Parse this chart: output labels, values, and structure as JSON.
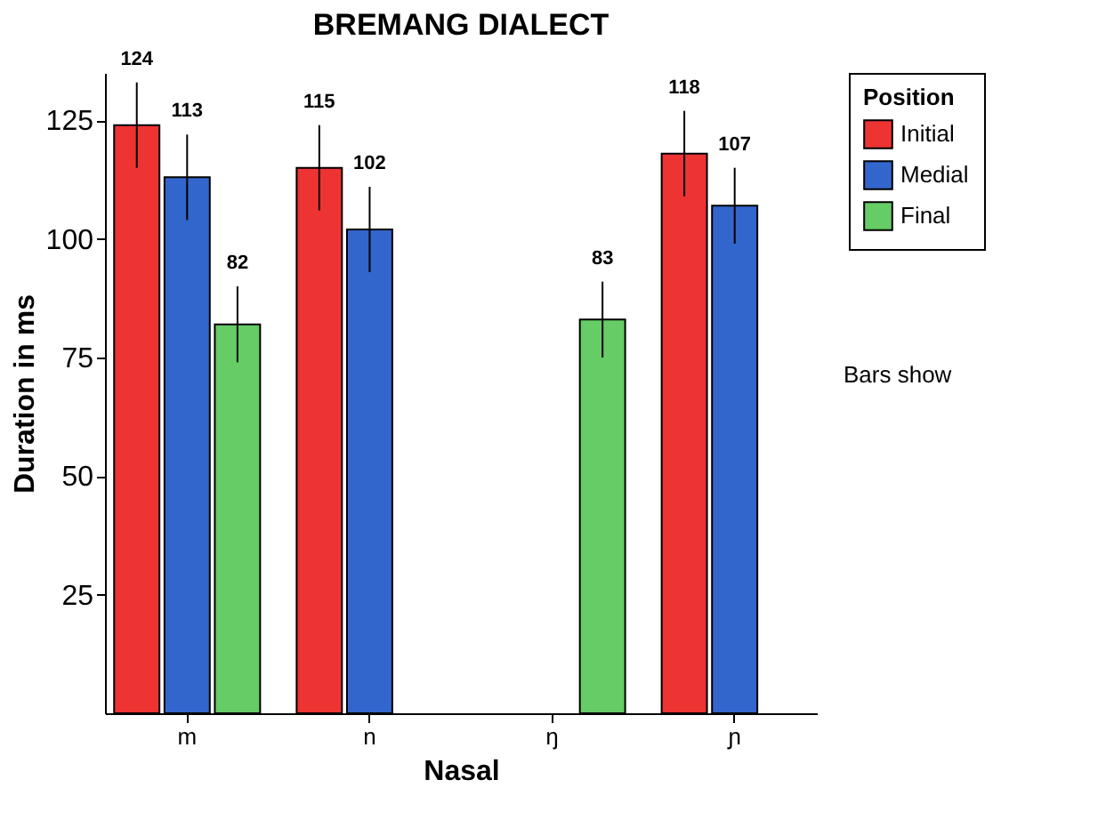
{
  "chart_data": {
    "type": "bar",
    "title": "BREMANG DIALECT",
    "xlabel": "Nasal",
    "ylabel": "Duration in ms",
    "legend_title": "Position",
    "categories": [
      "m",
      "n",
      "ŋ",
      "ɲ"
    ],
    "series": [
      {
        "name": "Initial",
        "color": "#ee3333",
        "values": [
          124,
          115,
          null,
          118
        ],
        "errors": [
          9,
          9,
          null,
          9
        ]
      },
      {
        "name": "Medial",
        "color": "#3366cc",
        "values": [
          113,
          102,
          null,
          107
        ],
        "errors": [
          9,
          9,
          null,
          8
        ]
      },
      {
        "name": "Final",
        "color": "#66cc66",
        "values": [
          82,
          null,
          83,
          null
        ],
        "errors": [
          8,
          null,
          8,
          null
        ]
      }
    ],
    "ylim": [
      0,
      135
    ],
    "yticks": [
      25,
      50,
      75,
      100,
      125
    ],
    "grid": false,
    "legend": "top right",
    "data_labels": true,
    "annotations": [
      "Bars show"
    ]
  }
}
